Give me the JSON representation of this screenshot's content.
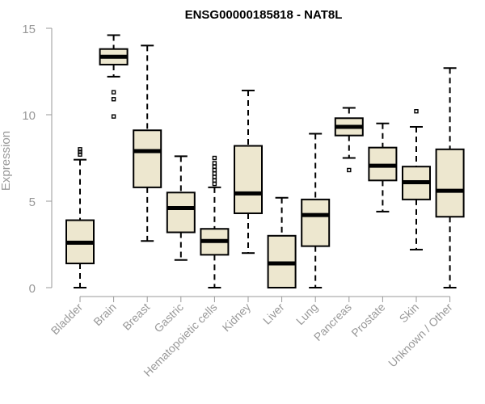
{
  "chart_data": {
    "type": "boxplot",
    "title": "ENSG00000185818 - NAT8L",
    "ylabel": "Expression",
    "xlabel": "",
    "ylim": [
      0,
      15
    ],
    "yticks": [
      0,
      5,
      10,
      15
    ],
    "box_color": "#ede7cf",
    "categories": [
      "Bladder",
      "Brain",
      "Breast",
      "Gastric",
      "Hematopoietic cells",
      "Kidney",
      "Liver",
      "Lung",
      "Pancreas",
      "Prostate",
      "Skin",
      "Unknown / Other"
    ],
    "series": [
      {
        "name": "Bladder",
        "min": 0.0,
        "q1": 1.4,
        "median": 2.6,
        "q3": 3.9,
        "max": 7.4,
        "outliers": [
          7.7,
          7.85,
          8.0
        ]
      },
      {
        "name": "Brain",
        "min": 12.2,
        "q1": 12.9,
        "median": 13.35,
        "q3": 13.8,
        "max": 14.6,
        "outliers": [
          11.3,
          10.9,
          9.9
        ]
      },
      {
        "name": "Breast",
        "min": 2.7,
        "q1": 5.8,
        "median": 7.9,
        "q3": 9.1,
        "max": 14.0,
        "outliers": []
      },
      {
        "name": "Gastric",
        "min": 1.6,
        "q1": 3.2,
        "median": 4.6,
        "q3": 5.5,
        "max": 7.6,
        "outliers": []
      },
      {
        "name": "Hematopoietic cells",
        "min": 0.0,
        "q1": 1.9,
        "median": 2.7,
        "q3": 3.4,
        "max": 5.8,
        "outliers": [
          6.0,
          6.2,
          6.4,
          6.6,
          6.8,
          7.0,
          7.2,
          7.5
        ]
      },
      {
        "name": "Kidney",
        "min": 2.0,
        "q1": 4.3,
        "median": 5.45,
        "q3": 8.2,
        "max": 11.4,
        "outliers": []
      },
      {
        "name": "Liver",
        "min": 0.0,
        "q1": 0.0,
        "median": 1.4,
        "q3": 3.0,
        "max": 5.2,
        "outliers": []
      },
      {
        "name": "Lung",
        "min": 0.0,
        "q1": 2.4,
        "median": 4.2,
        "q3": 5.1,
        "max": 8.9,
        "outliers": []
      },
      {
        "name": "Pancreas",
        "min": 7.5,
        "q1": 8.8,
        "median": 9.3,
        "q3": 9.8,
        "max": 10.4,
        "outliers": [
          6.8
        ]
      },
      {
        "name": "Prostate",
        "min": 4.4,
        "q1": 6.2,
        "median": 7.05,
        "q3": 8.1,
        "max": 9.5,
        "outliers": []
      },
      {
        "name": "Skin",
        "min": 2.2,
        "q1": 5.1,
        "median": 6.1,
        "q3": 7.0,
        "max": 9.3,
        "outliers": [
          10.2
        ]
      },
      {
        "name": "Unknown / Other",
        "min": 0.0,
        "q1": 4.1,
        "median": 5.6,
        "q3": 8.0,
        "max": 12.7,
        "outliers": []
      }
    ]
  }
}
